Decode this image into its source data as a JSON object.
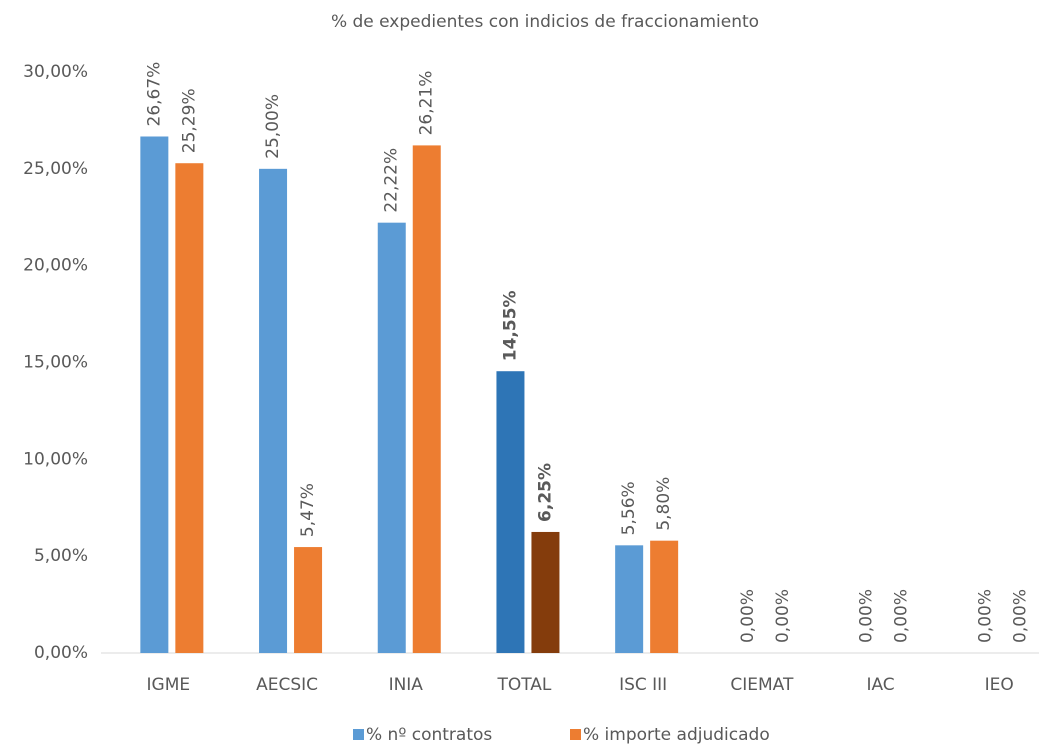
{
  "chart_data": {
    "type": "bar",
    "title": "%  de expedientes con indicios de fraccionamiento",
    "categories": [
      "IGME",
      "AECSIC",
      "INIA",
      "TOTAL",
      "ISC III",
      "CIEMAT",
      "IAC",
      "IEO"
    ],
    "series": [
      {
        "name": "% nº contratos",
        "color": "#5b9bd5",
        "colors": [
          "#5b9bd5",
          "#5b9bd5",
          "#5b9bd5",
          "#2e75b6",
          "#5b9bd5",
          "#5b9bd5",
          "#5b9bd5",
          "#5b9bd5"
        ],
        "value_label_bold": [
          false,
          false,
          false,
          true,
          false,
          false,
          false,
          false
        ],
        "values": [
          26.67,
          25.0,
          22.22,
          14.55,
          5.56,
          0,
          0,
          0
        ],
        "value_labels": [
          "26,67%",
          "25,00%",
          "22,22%",
          "14,55%",
          "5,56%",
          "0,00%",
          "0,00%",
          "0,00%"
        ]
      },
      {
        "name": "% importe adjudicado",
        "color": "#ed7d31",
        "colors": [
          "#ed7d31",
          "#ed7d31",
          "#ed7d31",
          "#843c0c",
          "#ed7d31",
          "#ed7d31",
          "#ed7d31",
          "#ed7d31"
        ],
        "value_label_bold": [
          false,
          false,
          false,
          true,
          false,
          false,
          false,
          false
        ],
        "values": [
          25.29,
          5.47,
          26.21,
          6.25,
          5.8,
          0,
          0,
          0
        ],
        "value_labels": [
          "25,29%",
          "5,47%",
          "26,21%",
          "6,25%",
          "5,80%",
          "0,00%",
          "0,00%",
          "0,00%"
        ]
      }
    ],
    "ylim": [
      0,
      30
    ],
    "yticks": [
      {
        "value": 0,
        "label": "0,00%"
      },
      {
        "value": 5,
        "label": "5,00%"
      },
      {
        "value": 10,
        "label": "10,00%"
      },
      {
        "value": 15,
        "label": "15,00%"
      },
      {
        "value": 20,
        "label": "20,00%"
      },
      {
        "value": 25,
        "label": "25,00%"
      },
      {
        "value": 30,
        "label": "30,00%"
      }
    ],
    "grid": false,
    "legend": "bottom"
  }
}
